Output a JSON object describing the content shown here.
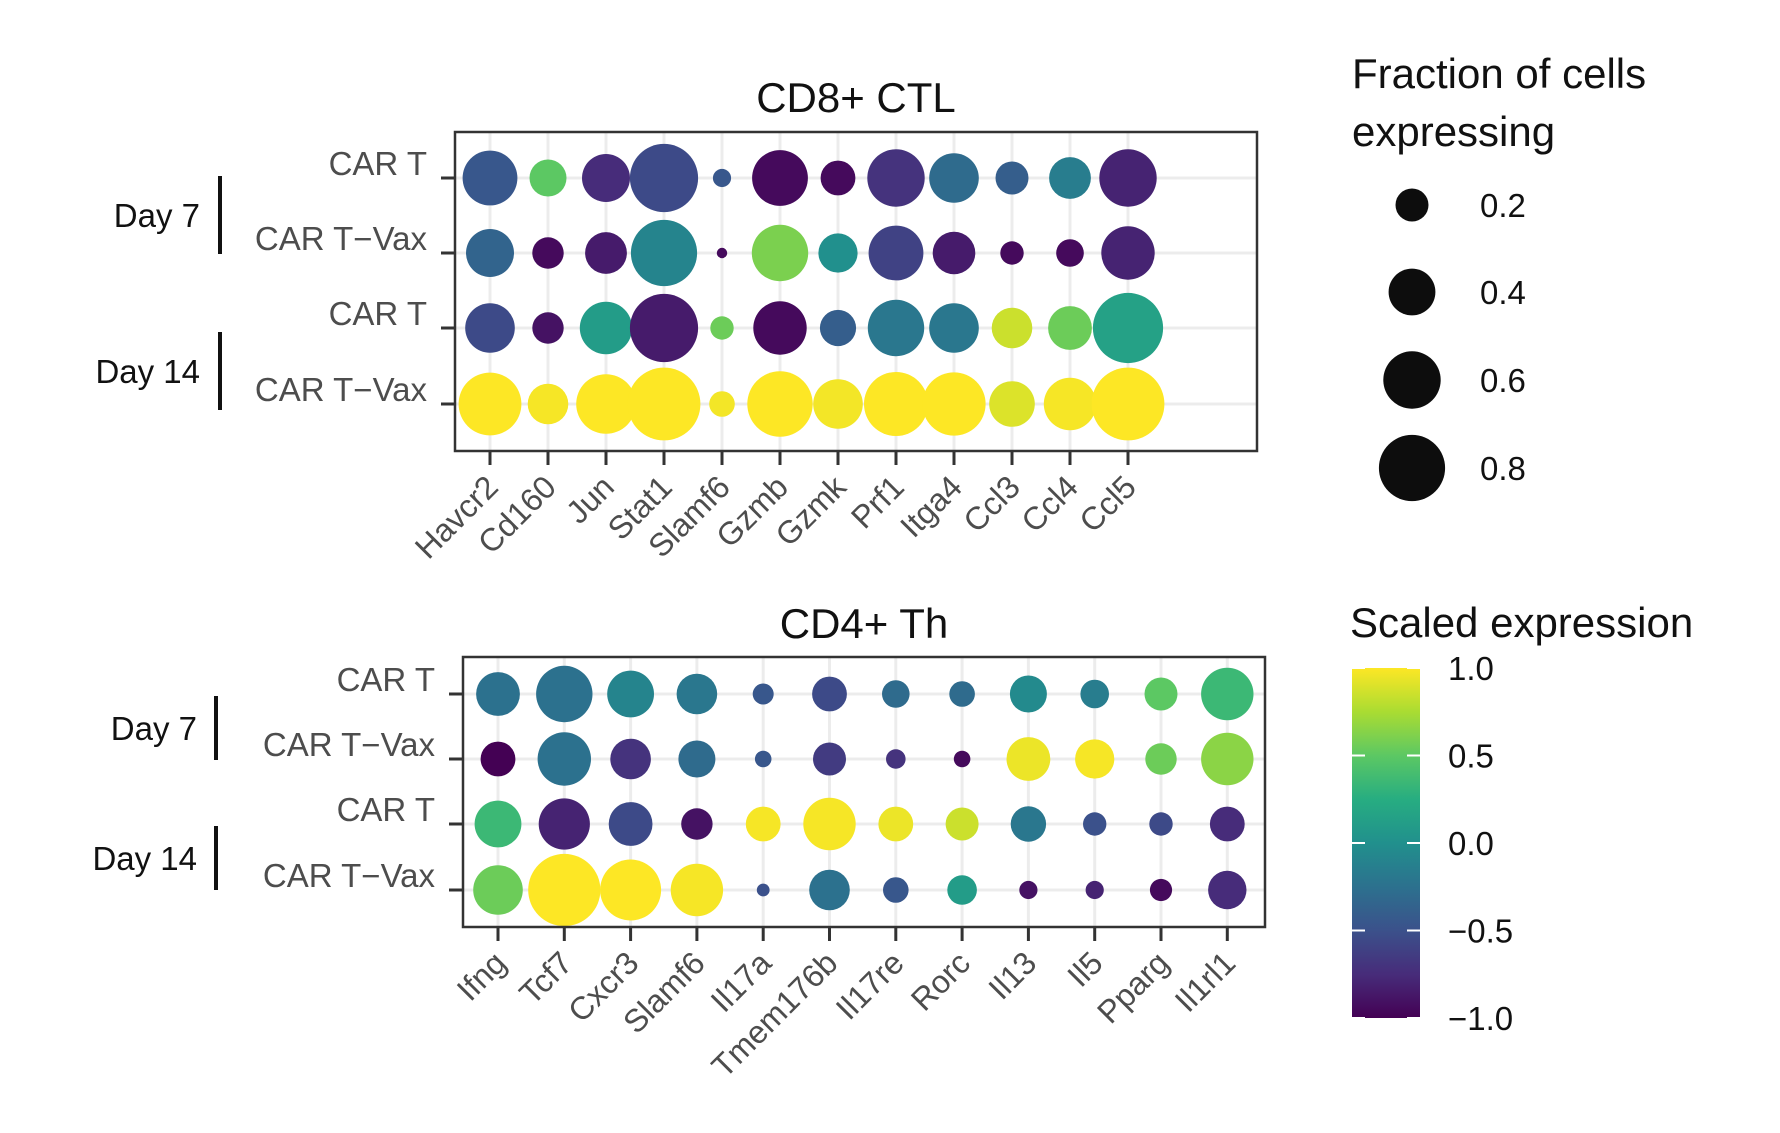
{
  "chart_data": [
    {
      "type": "dotplot",
      "title": "CD8+ CTL",
      "genes": [
        "Havcr2",
        "Cd160",
        "Jun",
        "Stat1",
        "Slamf6",
        "Gzmb",
        "Gzmk",
        "Prf1",
        "Itga4",
        "Ccl3",
        "Ccl4",
        "Ccl5"
      ],
      "conditions": [
        "CAR T",
        "CAR T−Vax",
        "CAR T",
        "CAR T−Vax"
      ],
      "groups": [
        {
          "label": "Day 7",
          "rows": [
            0,
            1
          ]
        },
        {
          "label": "Day 14",
          "rows": [
            2,
            3
          ]
        }
      ],
      "fraction": [
        [
          0.55,
          0.25,
          0.42,
          0.85,
          0.06,
          0.57,
          0.22,
          0.6,
          0.45,
          0.2,
          0.32,
          0.6
        ],
        [
          0.42,
          0.18,
          0.32,
          0.8,
          0.02,
          0.58,
          0.28,
          0.55,
          0.33,
          0.1,
          0.14,
          0.52
        ],
        [
          0.45,
          0.18,
          0.5,
          0.85,
          0.1,
          0.52,
          0.24,
          0.58,
          0.45,
          0.3,
          0.35,
          0.9
        ],
        [
          0.72,
          0.3,
          0.65,
          0.97,
          0.12,
          0.78,
          0.45,
          0.75,
          0.73,
          0.38,
          0.5,
          0.97
        ]
      ],
      "expression": [
        [
          -0.45,
          0.5,
          -0.75,
          -0.55,
          -0.45,
          -0.95,
          -0.95,
          -0.7,
          -0.3,
          -0.4,
          -0.15,
          -0.8
        ],
        [
          -0.35,
          -0.95,
          -0.85,
          -0.1,
          -0.95,
          0.6,
          0.0,
          -0.6,
          -0.85,
          -0.95,
          -0.95,
          -0.8
        ],
        [
          -0.55,
          -0.9,
          0.1,
          -0.85,
          0.55,
          -0.95,
          -0.4,
          -0.2,
          -0.2,
          0.85,
          0.55,
          0.15
        ],
        [
          1.0,
          0.98,
          1.0,
          1.0,
          0.97,
          1.0,
          0.97,
          1.0,
          1.0,
          0.9,
          0.98,
          1.0
        ]
      ]
    },
    {
      "type": "dotplot",
      "title": "CD4+ Th",
      "genes": [
        "Ifng",
        "Tcf7",
        "Cxcr3",
        "Slamf6",
        "Il17a",
        "Tmem176b",
        "Il17re",
        "Rorc",
        "Il13",
        "Il5",
        "Pparg",
        "Il1rl1"
      ],
      "conditions": [
        "CAR T",
        "CAR T−Vax",
        "CAR T",
        "CAR T−Vax"
      ],
      "groups": [
        {
          "label": "Day 7",
          "rows": [
            0,
            1
          ]
        },
        {
          "label": "Day 14",
          "rows": [
            2,
            3
          ]
        }
      ],
      "fraction": [
        [
          0.35,
          0.58,
          0.4,
          0.3,
          0.08,
          0.22,
          0.14,
          0.12,
          0.25,
          0.15,
          0.2,
          0.5
        ],
        [
          0.22,
          0.52,
          0.3,
          0.25,
          0.05,
          0.2,
          0.07,
          0.05,
          0.35,
          0.28,
          0.18,
          0.5
        ],
        [
          0.4,
          0.48,
          0.35,
          0.18,
          0.22,
          0.5,
          0.22,
          0.2,
          0.23,
          0.1,
          0.1,
          0.22
        ],
        [
          0.45,
          0.95,
          0.68,
          0.5,
          0.03,
          0.3,
          0.12,
          0.16,
          0.06,
          0.06,
          0.09,
          0.27
        ]
      ],
      "expression": [
        [
          -0.25,
          -0.25,
          -0.1,
          -0.2,
          -0.45,
          -0.55,
          -0.3,
          -0.3,
          -0.05,
          -0.15,
          0.5,
          0.35
        ],
        [
          -1.0,
          -0.25,
          -0.7,
          -0.3,
          -0.45,
          -0.65,
          -0.7,
          -0.95,
          0.95,
          0.98,
          0.55,
          0.65
        ],
        [
          0.35,
          -0.8,
          -0.55,
          -0.9,
          0.98,
          0.98,
          0.95,
          0.85,
          -0.2,
          -0.5,
          -0.55,
          -0.75
        ],
        [
          0.55,
          1.0,
          1.0,
          0.98,
          -0.5,
          -0.25,
          -0.45,
          0.1,
          -0.9,
          -0.8,
          -0.95,
          -0.75
        ]
      ]
    }
  ],
  "legend": {
    "size_title": [
      "Fraction of cells",
      "expressing"
    ],
    "size_values": [
      "0.2",
      "0.4",
      "0.6",
      "0.8"
    ],
    "color_title": "Scaled expression",
    "color_ticks": [
      "1.0",
      "0.5",
      "0.0",
      "−0.5",
      "−1.0"
    ],
    "color_tick_values": [
      1.0,
      0.5,
      0.0,
      -0.5,
      -1.0
    ]
  }
}
